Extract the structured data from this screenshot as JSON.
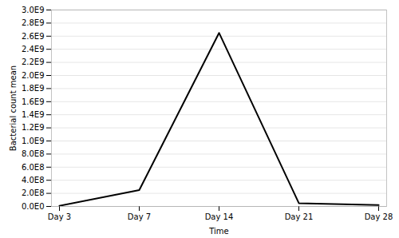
{
  "chart_data": {
    "type": "line",
    "xlabel": "Time",
    "ylabel": "Bacterial count mean",
    "categories": [
      "Day 3",
      "Day 7",
      "Day 14",
      "Day 21",
      "Day 28"
    ],
    "values": [
      10000000.0,
      250000000.0,
      2650000000.0,
      50000000.0,
      20000000.0
    ],
    "color": "#000000",
    "ylim": [
      0,
      3000000000.0
    ],
    "yticks": [
      {
        "value": 0.0,
        "label": "0.0E0"
      },
      {
        "value": 200000000.0,
        "label": "2.0E8"
      },
      {
        "value": 400000000.0,
        "label": "4.0E8"
      },
      {
        "value": 600000000.0,
        "label": "6.0E8"
      },
      {
        "value": 800000000.0,
        "label": "8.0E8"
      },
      {
        "value": 1000000000.0,
        "label": "1.0E9"
      },
      {
        "value": 1200000000.0,
        "label": "1.2E9"
      },
      {
        "value": 1400000000.0,
        "label": "1.4E9"
      },
      {
        "value": 1600000000.0,
        "label": "1.6E9"
      },
      {
        "value": 1800000000.0,
        "label": "1.8E9"
      },
      {
        "value": 2000000000.0,
        "label": "2.0E9"
      },
      {
        "value": 2200000000.0,
        "label": "2.2E9"
      },
      {
        "value": 2400000000.0,
        "label": "2.4E9"
      },
      {
        "value": 2600000000.0,
        "label": "2.6E9"
      },
      {
        "value": 2800000000.0,
        "label": "2.8E9"
      },
      {
        "value": 3000000000.0,
        "label": "3.0E9"
      }
    ],
    "grid": true
  }
}
